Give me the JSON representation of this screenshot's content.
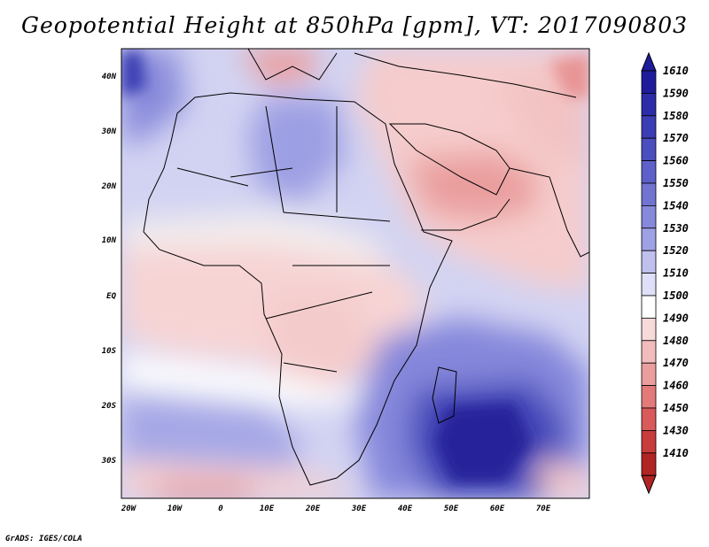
{
  "title": "Geopotential Height at 850hPa [gpm], VT: 2017090803",
  "footer": "GrADS: IGES/COLA",
  "lat_labels": [
    "40N",
    "30N",
    "20N",
    "10N",
    "EQ",
    "10S",
    "20S",
    "30S"
  ],
  "lon_labels": [
    "20W",
    "10W",
    "0",
    "10E",
    "20E",
    "30E",
    "40E",
    "50E",
    "60E",
    "70E"
  ],
  "colorbar": {
    "levels": [
      "1610",
      "1590",
      "1580",
      "1570",
      "1560",
      "1550",
      "1540",
      "1530",
      "1520",
      "1510",
      "1500",
      "1490",
      "1480",
      "1470",
      "1460",
      "1450",
      "1430",
      "1410"
    ],
    "colors": [
      "#1e1c9a",
      "#2c2ca8",
      "#3b3db4",
      "#4b4ebf",
      "#5e60c9",
      "#7274d2",
      "#8789dc",
      "#9fa1e5",
      "#bfc0ee",
      "#dfe0f7",
      "#ffffff",
      "#f8dada",
      "#f2bcbc",
      "#eb9e9e",
      "#e27a7a",
      "#d85a5a",
      "#c83c3c",
      "#b12424"
    ],
    "top_color": "#1e1c9a",
    "bottom_color": "#b12424"
  }
}
